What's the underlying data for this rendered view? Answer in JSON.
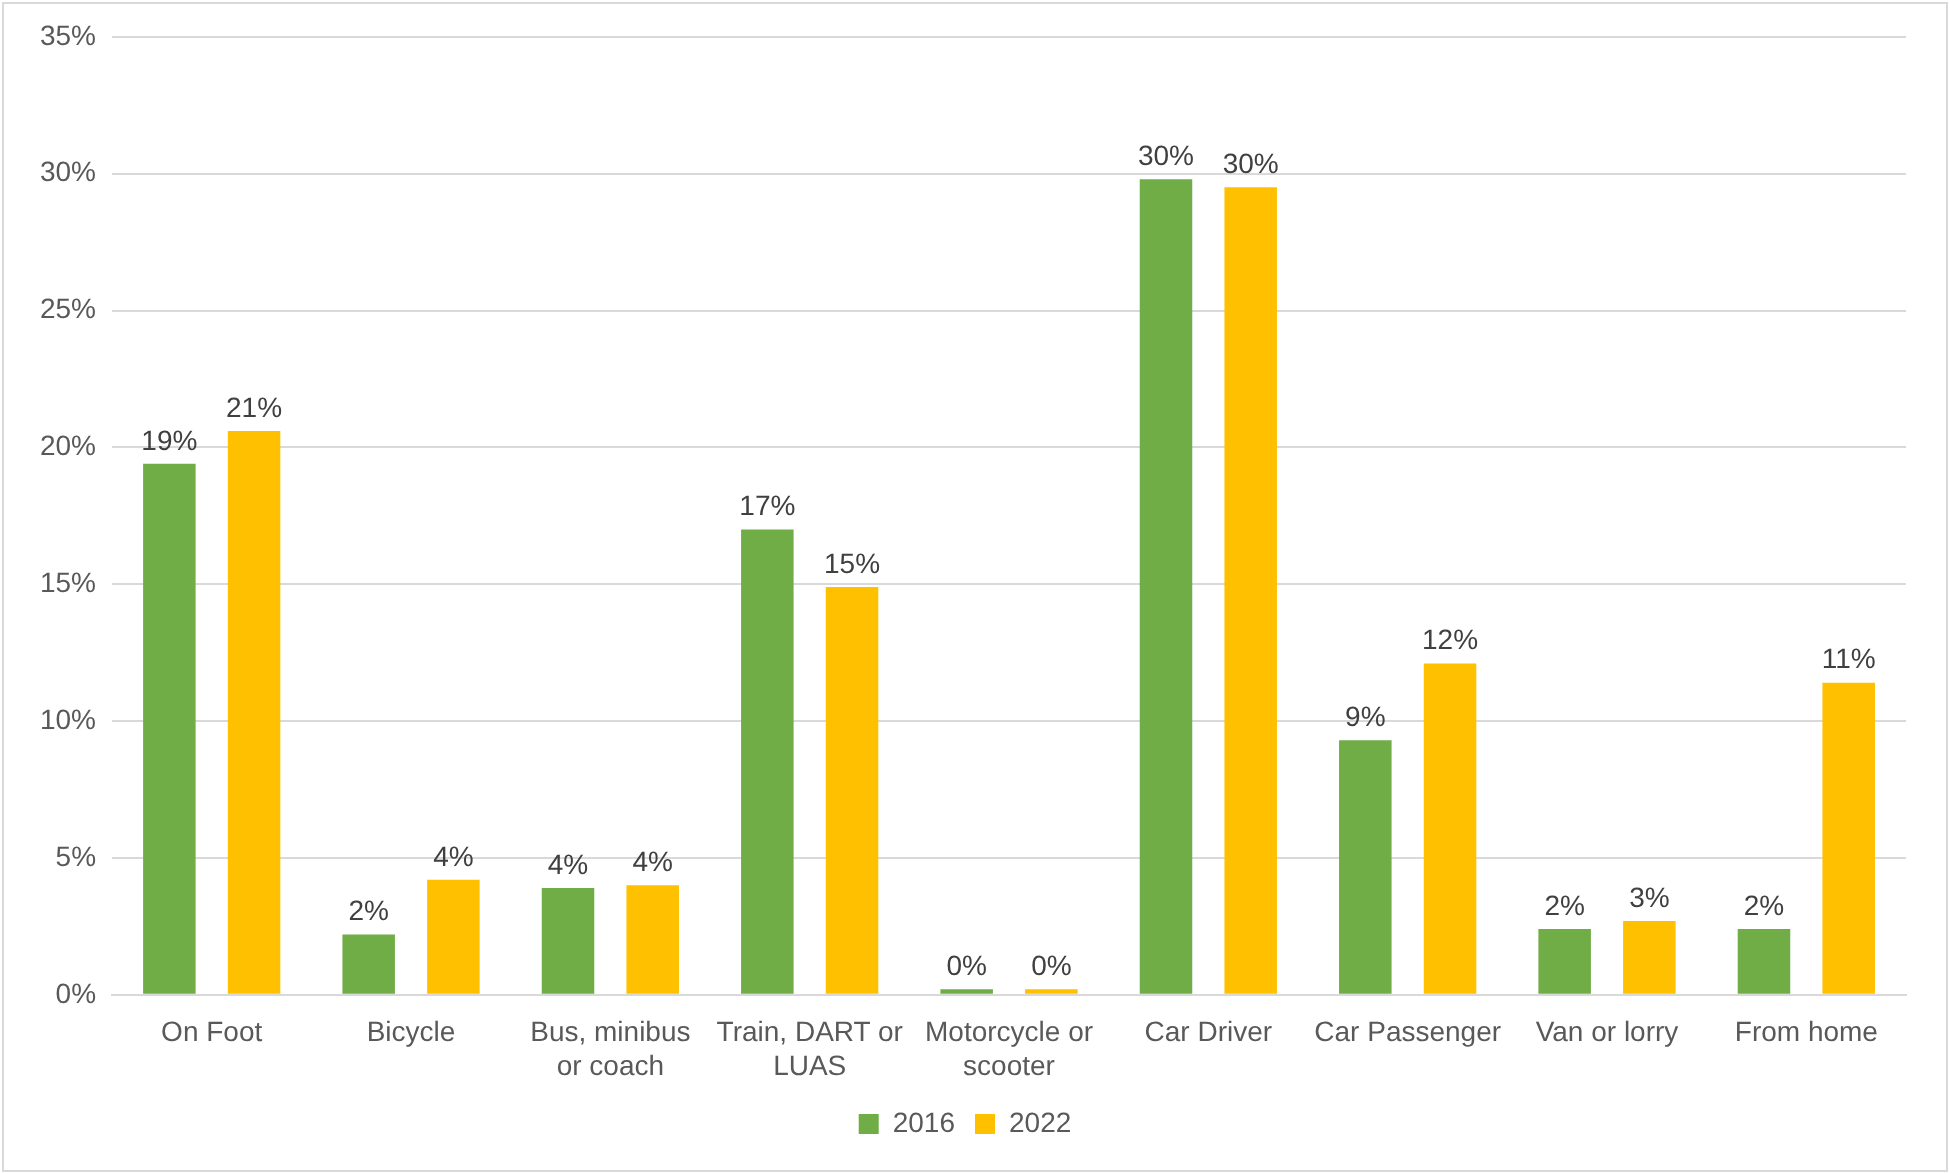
{
  "chart_data": {
    "type": "bar",
    "categories": [
      "On Foot",
      "Bicycle",
      "Bus, minibus or coach",
      "Train, DART or LUAS",
      "Motorcycle or scooter",
      "Car Driver",
      "Car Passenger",
      "Van or lorry",
      "From home"
    ],
    "series": [
      {
        "name": "2016",
        "color": "#70ad47",
        "values": [
          19.4,
          2.2,
          3.9,
          17.0,
          0.2,
          29.8,
          9.3,
          2.4,
          2.4
        ],
        "value_labels": [
          "19%",
          "2%",
          "4%",
          "17%",
          "0%",
          "30%",
          "9%",
          "2%",
          "2%"
        ]
      },
      {
        "name": "2022",
        "color": "#ffc000",
        "values": [
          20.6,
          4.2,
          4.0,
          14.9,
          0.2,
          29.5,
          12.1,
          2.7,
          11.4
        ],
        "value_labels": [
          "21%",
          "4%",
          "4%",
          "15%",
          "0%",
          "30%",
          "12%",
          "3%",
          "11%"
        ]
      }
    ],
    "ylim": [
      0,
      35
    ],
    "yticks": [
      {
        "value": 0,
        "label": "0%"
      },
      {
        "value": 5,
        "label": "5%"
      },
      {
        "value": 10,
        "label": "10%"
      },
      {
        "value": 15,
        "label": "15%"
      },
      {
        "value": 20,
        "label": "20%"
      },
      {
        "value": 25,
        "label": "25%"
      },
      {
        "value": 30,
        "label": "30%"
      },
      {
        "value": 35,
        "label": "35%"
      }
    ],
    "grid": "y",
    "legend": "bottom"
  }
}
